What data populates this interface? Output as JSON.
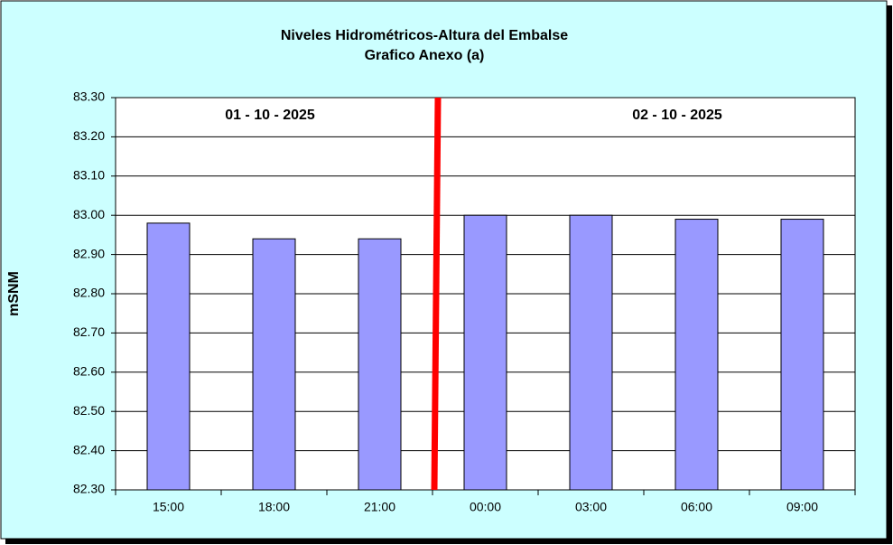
{
  "chart_data": {
    "type": "bar",
    "title": "Niveles Hidrométricos-Altura del Embalse",
    "subtitle": "Grafico Anexo (a)",
    "y_label": "mSNM",
    "categories": [
      "15:00",
      "18:00",
      "21:00",
      "00:00",
      "03:00",
      "06:00",
      "09:00"
    ],
    "values": [
      82.98,
      82.94,
      82.94,
      83.0,
      83.0,
      82.99,
      82.99
    ],
    "color": "#9999ff",
    "ylim": [
      82.3,
      83.3
    ],
    "yticks": [
      {
        "value": 82.3,
        "label": "82.30"
      },
      {
        "value": 82.4,
        "label": "82.40"
      },
      {
        "value": 82.5,
        "label": "82.50"
      },
      {
        "value": 82.6,
        "label": "82.60"
      },
      {
        "value": 82.7,
        "label": "82.70"
      },
      {
        "value": 82.8,
        "label": "82.80"
      },
      {
        "value": 82.9,
        "label": "82.90"
      },
      {
        "value": 83.0,
        "label": "83.00"
      },
      {
        "value": 83.1,
        "label": "83.10"
      },
      {
        "value": 83.2,
        "label": "83.20"
      },
      {
        "value": 83.3,
        "label": "83.30"
      }
    ],
    "grid": true,
    "annotations": [
      "01 - 10 - 2025",
      "02 - 10 - 2025"
    ]
  }
}
